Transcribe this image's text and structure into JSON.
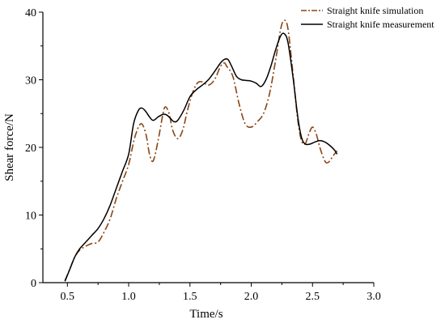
{
  "chart_data": {
    "type": "line",
    "xlabel": "Time/s",
    "ylabel": "Shear force/N",
    "xlim": [
      0.3,
      3.0
    ],
    "ylim": [
      0,
      40
    ],
    "xticks": [
      "0.5",
      "1.0",
      "1.5",
      "2.0",
      "2.5",
      "3.0"
    ],
    "yticks": [
      "0",
      "10",
      "20",
      "30",
      "40"
    ],
    "legend_position": "top-right",
    "series": [
      {
        "name": "Straight knife simulation",
        "color": "#8B4513",
        "style": "dash-dot",
        "points": [
          [
            0.48,
            0.3
          ],
          [
            0.52,
            2.0
          ],
          [
            0.56,
            3.8
          ],
          [
            0.6,
            4.8
          ],
          [
            0.65,
            5.4
          ],
          [
            0.7,
            5.8
          ],
          [
            0.75,
            6.0
          ],
          [
            0.8,
            7.5
          ],
          [
            0.85,
            9.5
          ],
          [
            0.9,
            12.5
          ],
          [
            0.95,
            15.0
          ],
          [
            1.0,
            17.5
          ],
          [
            1.05,
            21.5
          ],
          [
            1.1,
            23.5
          ],
          [
            1.14,
            22.0
          ],
          [
            1.17,
            19.0
          ],
          [
            1.2,
            18.0
          ],
          [
            1.24,
            21.0
          ],
          [
            1.28,
            25.0
          ],
          [
            1.3,
            26.0
          ],
          [
            1.33,
            25.0
          ],
          [
            1.36,
            22.5
          ],
          [
            1.4,
            21.3
          ],
          [
            1.44,
            22.5
          ],
          [
            1.48,
            25.5
          ],
          [
            1.52,
            28.0
          ],
          [
            1.56,
            29.5
          ],
          [
            1.6,
            29.7
          ],
          [
            1.65,
            29.2
          ],
          [
            1.7,
            30.0
          ],
          [
            1.75,
            32.0
          ],
          [
            1.78,
            32.5
          ],
          [
            1.8,
            32.0
          ],
          [
            1.85,
            30.5
          ],
          [
            1.9,
            26.5
          ],
          [
            1.95,
            23.5
          ],
          [
            2.0,
            23.0
          ],
          [
            2.05,
            23.8
          ],
          [
            2.1,
            25.0
          ],
          [
            2.15,
            28.0
          ],
          [
            2.2,
            33.0
          ],
          [
            2.24,
            37.5
          ],
          [
            2.27,
            38.8
          ],
          [
            2.3,
            37.5
          ],
          [
            2.34,
            31.0
          ],
          [
            2.38,
            24.0
          ],
          [
            2.41,
            21.0
          ],
          [
            2.44,
            20.5
          ],
          [
            2.47,
            22.0
          ],
          [
            2.5,
            23.0
          ],
          [
            2.53,
            22.0
          ],
          [
            2.56,
            20.0
          ],
          [
            2.6,
            18.0
          ],
          [
            2.63,
            17.8
          ],
          [
            2.67,
            18.8
          ],
          [
            2.7,
            19.5
          ]
        ]
      },
      {
        "name": "Straight knife measurement",
        "color": "#000000",
        "style": "solid",
        "points": [
          [
            0.48,
            0.2
          ],
          [
            0.52,
            2.0
          ],
          [
            0.56,
            3.8
          ],
          [
            0.6,
            5.0
          ],
          [
            0.65,
            6.0
          ],
          [
            0.7,
            7.0
          ],
          [
            0.75,
            8.0
          ],
          [
            0.8,
            9.5
          ],
          [
            0.85,
            11.5
          ],
          [
            0.9,
            14.0
          ],
          [
            0.95,
            16.5
          ],
          [
            1.0,
            19.0
          ],
          [
            1.04,
            23.5
          ],
          [
            1.08,
            25.5
          ],
          [
            1.11,
            25.8
          ],
          [
            1.14,
            25.3
          ],
          [
            1.17,
            24.5
          ],
          [
            1.2,
            24.0
          ],
          [
            1.24,
            24.5
          ],
          [
            1.28,
            24.9
          ],
          [
            1.31,
            24.8
          ],
          [
            1.34,
            24.3
          ],
          [
            1.37,
            23.8
          ],
          [
            1.4,
            24.0
          ],
          [
            1.45,
            25.5
          ],
          [
            1.5,
            27.5
          ],
          [
            1.55,
            28.5
          ],
          [
            1.6,
            29.2
          ],
          [
            1.65,
            30.0
          ],
          [
            1.7,
            31.2
          ],
          [
            1.75,
            32.5
          ],
          [
            1.78,
            33.0
          ],
          [
            1.81,
            33.0
          ],
          [
            1.84,
            32.0
          ],
          [
            1.88,
            30.5
          ],
          [
            1.92,
            30.0
          ],
          [
            1.96,
            29.9
          ],
          [
            2.0,
            29.8
          ],
          [
            2.04,
            29.5
          ],
          [
            2.08,
            29.0
          ],
          [
            2.12,
            30.0
          ],
          [
            2.16,
            32.0
          ],
          [
            2.2,
            34.5
          ],
          [
            2.24,
            36.5
          ],
          [
            2.27,
            36.8
          ],
          [
            2.3,
            35.5
          ],
          [
            2.34,
            30.5
          ],
          [
            2.38,
            24.5
          ],
          [
            2.41,
            21.5
          ],
          [
            2.44,
            20.5
          ],
          [
            2.48,
            20.5
          ],
          [
            2.52,
            20.8
          ],
          [
            2.56,
            21.0
          ],
          [
            2.6,
            20.8
          ],
          [
            2.64,
            20.3
          ],
          [
            2.68,
            19.6
          ],
          [
            2.7,
            19.0
          ]
        ]
      }
    ]
  }
}
